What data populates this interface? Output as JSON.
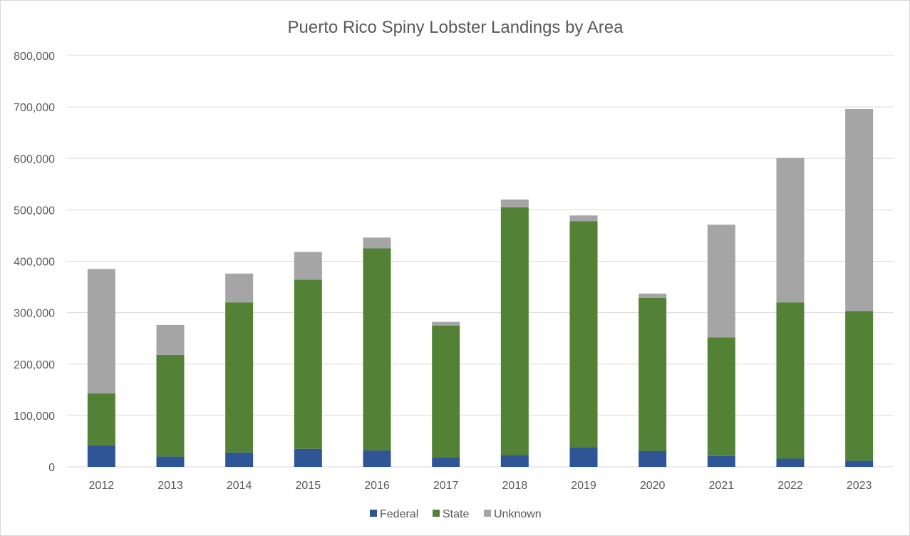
{
  "chart_data": {
    "type": "bar",
    "stacked": true,
    "title": "Puerto Rico Spiny Lobster Landings by Area",
    "xlabel": "",
    "ylabel": "",
    "ylim": [
      0,
      800000
    ],
    "y_ticks": [
      0,
      100000,
      200000,
      300000,
      400000,
      500000,
      600000,
      700000,
      800000
    ],
    "y_tick_labels": [
      "0",
      "100,000",
      "200,000",
      "300,000",
      "400,000",
      "500,000",
      "600,000",
      "700,000",
      "800,000"
    ],
    "grid": true,
    "legend_position": "bottom",
    "categories": [
      "2012",
      "2013",
      "2014",
      "2015",
      "2016",
      "2017",
      "2018",
      "2019",
      "2020",
      "2021",
      "2022",
      "2023"
    ],
    "series": [
      {
        "name": "Federal",
        "color": "#2f5597",
        "values": [
          42000,
          20000,
          28000,
          35000,
          32000,
          19000,
          23000,
          38000,
          31000,
          21000,
          16000,
          12000
        ]
      },
      {
        "name": "State",
        "color": "#538135",
        "values": [
          101000,
          198000,
          292000,
          329000,
          393000,
          256000,
          482000,
          440000,
          298000,
          231000,
          304000,
          291000
        ]
      },
      {
        "name": "Unknown",
        "color": "#a5a5a5",
        "values": [
          242000,
          58000,
          56000,
          54000,
          21000,
          7000,
          15000,
          11000,
          8000,
          219000,
          281000,
          393000
        ]
      }
    ]
  }
}
